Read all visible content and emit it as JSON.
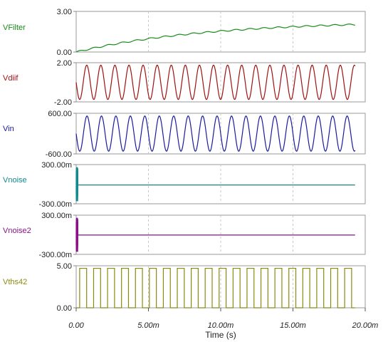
{
  "chart_data": {
    "type": "line",
    "xlabel": "Time (s)",
    "x_ticks": [
      "0.00",
      "5.00m",
      "10.00m",
      "15.00m",
      "20.00m"
    ],
    "x_unit_scale": 0.001,
    "xlim": [
      0,
      20
    ],
    "grid": true,
    "panels": [
      {
        "name": "VFilter",
        "color": "#1a8a1a",
        "ylim": [
          0,
          3
        ],
        "yticks": [
          "3.00",
          "0.00"
        ],
        "signal": "ramp",
        "x_end": 19.3,
        "start": 0.0,
        "level_after_20ms": 2.05,
        "ripple": 0.05
      },
      {
        "name": "Vdiif",
        "color": "#a01010",
        "ylim": [
          -2,
          2
        ],
        "yticks": [
          "2.00",
          "-2.00"
        ],
        "signal": "sine",
        "x_end": 19.3,
        "amplitude": 1.75,
        "cycles": 19.8
      },
      {
        "name": "Vin",
        "color": "#1a1aa0",
        "ylim": [
          -600,
          600
        ],
        "yticks": [
          "600.00",
          "-600.00"
        ],
        "signal": "sine",
        "x_end": 19.3,
        "amplitude": 520,
        "cycles": 19.3
      },
      {
        "name": "Vnoise",
        "color": "#108a8a",
        "ylim": [
          -300,
          300
        ],
        "yticks": [
          "300.00m",
          "-300.00m"
        ],
        "signal": "burst",
        "x_end": 19.3,
        "level": -0.012,
        "burst_amplitude": 0.26
      },
      {
        "name": "Vnoise2",
        "color": "#8a108a",
        "ylim": [
          -300,
          300
        ],
        "yticks": [
          "300.00m",
          "-300.00m"
        ],
        "signal": "burst",
        "x_end": 19.3,
        "level": -0.004,
        "burst_amplitude": 0.26
      },
      {
        "name": "Vths42",
        "color": "#8a8a10",
        "ylim": [
          0,
          5
        ],
        "yticks": [
          "5.00",
          "0.00"
        ],
        "signal": "square",
        "x_end": 19.3,
        "high": 4.7,
        "low": 0.0,
        "pulses": 20
      }
    ]
  }
}
